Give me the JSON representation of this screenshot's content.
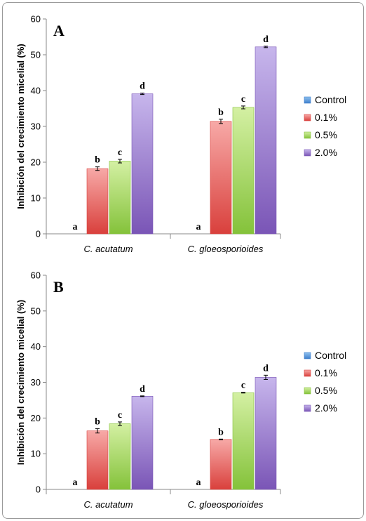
{
  "colors": {
    "Control": [
      "#8fc1ef",
      "#3f7fcc"
    ],
    "0.1%": [
      "#f7a9a7",
      "#d9403c"
    ],
    "0.5%": [
      "#d4f0a3",
      "#84c23a"
    ],
    "2.0%": [
      "#c7b6ec",
      "#7a55b6"
    ]
  },
  "chart_data": [
    {
      "type": "bar",
      "panel_label": "A",
      "ylabel": "Inhibición del crecimiento micelial (%)",
      "ylim": [
        0,
        60
      ],
      "yticks": [
        0,
        10,
        20,
        30,
        40,
        50,
        60
      ],
      "categories": [
        "C. acutatum",
        "C. gloeosporioides"
      ],
      "legend_position": "right",
      "series": [
        {
          "name": "Control",
          "values": [
            0,
            0
          ],
          "errors": [
            0,
            0
          ],
          "labels": [
            "a",
            "a"
          ]
        },
        {
          "name": "0.1%",
          "values": [
            18.2,
            31.4
          ],
          "errors": [
            0.5,
            0.6
          ],
          "labels": [
            "b",
            "b"
          ]
        },
        {
          "name": "0.5%",
          "values": [
            20.3,
            35.3
          ],
          "errors": [
            0.5,
            0.4
          ],
          "labels": [
            "c",
            "c"
          ]
        },
        {
          "name": "2.0%",
          "values": [
            39.1,
            52.2
          ],
          "errors": [
            0.2,
            0.2
          ],
          "labels": [
            "d",
            "d"
          ]
        }
      ]
    },
    {
      "type": "bar",
      "panel_label": "B",
      "ylabel": "Inhibición del crecimiento micelial (%)",
      "ylim": [
        0,
        60
      ],
      "yticks": [
        0,
        10,
        20,
        30,
        40,
        50,
        60
      ],
      "categories": [
        "C. acutatum",
        "C. gloeosporioides"
      ],
      "legend_position": "right",
      "series": [
        {
          "name": "Control",
          "values": [
            0,
            0
          ],
          "errors": [
            0,
            0
          ],
          "labels": [
            "a",
            "a"
          ]
        },
        {
          "name": "0.1%",
          "values": [
            16.4,
            14.0
          ],
          "errors": [
            0.6,
            0.1
          ],
          "labels": [
            "b",
            "b"
          ]
        },
        {
          "name": "0.5%",
          "values": [
            18.4,
            27.1
          ],
          "errors": [
            0.5,
            0.1
          ],
          "labels": [
            "c",
            "c"
          ]
        },
        {
          "name": "2.0%",
          "values": [
            26.1,
            31.4
          ],
          "errors": [
            0.1,
            0.6
          ],
          "labels": [
            "d",
            "d"
          ]
        }
      ]
    }
  ]
}
